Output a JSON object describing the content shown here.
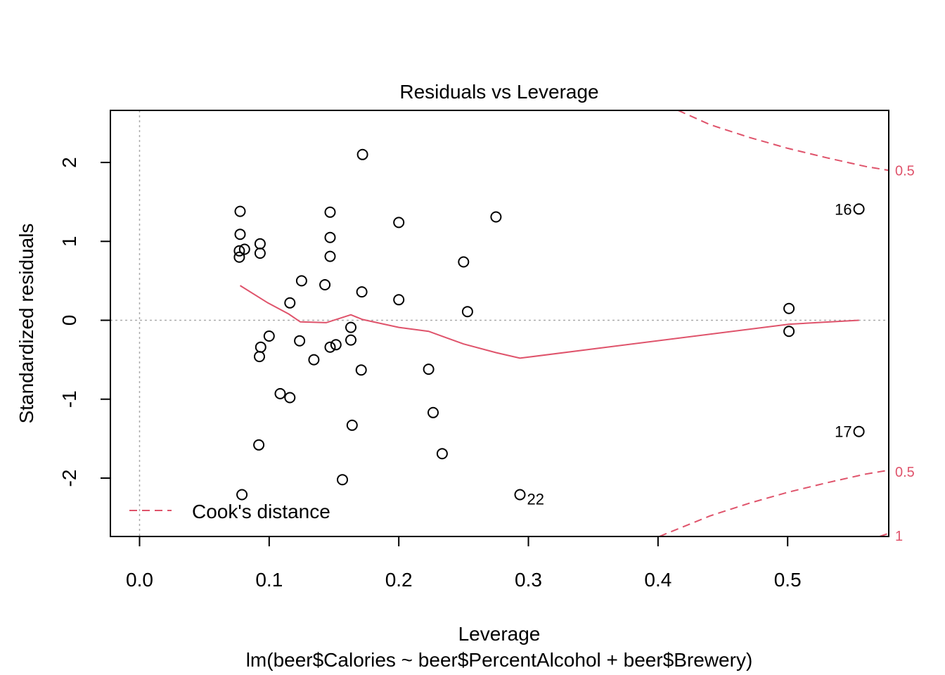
{
  "chart_data": {
    "type": "scatter",
    "title": "Residuals vs Leverage",
    "xlabel": "Leverage",
    "subtitle": "lm(beer$Calories ~ beer$PercentAlcohol + beer$Brewery)",
    "ylabel": "Standardized residuals",
    "xlim": [
      -0.0225,
      0.578
    ],
    "ylim": [
      -2.74,
      2.66
    ],
    "x_ticks": [
      0.0,
      0.1,
      0.2,
      0.3,
      0.4,
      0.5
    ],
    "x_tick_labels": [
      "0.0",
      "0.1",
      "0.2",
      "0.3",
      "0.4",
      "0.5"
    ],
    "y_ticks": [
      -2,
      -1,
      0,
      1,
      2
    ],
    "y_tick_labels": [
      "-2",
      "-1",
      "0",
      "1",
      "2"
    ],
    "grid": false,
    "reference_lines": {
      "x": 0,
      "y": 0,
      "color": "#aaaaaa",
      "style": "dotted"
    },
    "points": [
      {
        "x": 0.0776,
        "y": 1.38
      },
      {
        "x": 0.0776,
        "y": 1.09
      },
      {
        "x": 0.077,
        "y": 0.88
      },
      {
        "x": 0.081,
        "y": 0.9
      },
      {
        "x": 0.077,
        "y": 0.8
      },
      {
        "x": 0.093,
        "y": 0.97
      },
      {
        "x": 0.093,
        "y": 0.85
      },
      {
        "x": 0.1,
        "y": -0.2
      },
      {
        "x": 0.0935,
        "y": -0.34
      },
      {
        "x": 0.0925,
        "y": -0.46
      },
      {
        "x": 0.1085,
        "y": -0.93
      },
      {
        "x": 0.116,
        "y": -0.98
      },
      {
        "x": 0.092,
        "y": -1.58
      },
      {
        "x": 0.079,
        "y": -2.21
      },
      {
        "x": 0.116,
        "y": 0.22
      },
      {
        "x": 0.125,
        "y": 0.5
      },
      {
        "x": 0.1235,
        "y": -0.26
      },
      {
        "x": 0.1345,
        "y": -0.5
      },
      {
        "x": 0.143,
        "y": 0.45
      },
      {
        "x": 0.147,
        "y": 1.37
      },
      {
        "x": 0.147,
        "y": 1.05
      },
      {
        "x": 0.147,
        "y": 0.81
      },
      {
        "x": 0.147,
        "y": -0.34
      },
      {
        "x": 0.1515,
        "y": -0.31
      },
      {
        "x": 0.1565,
        "y": -2.02
      },
      {
        "x": 0.163,
        "y": -0.09
      },
      {
        "x": 0.163,
        "y": -0.25
      },
      {
        "x": 0.164,
        "y": -1.33
      },
      {
        "x": 0.171,
        "y": -0.63
      },
      {
        "x": 0.1715,
        "y": 0.36
      },
      {
        "x": 0.172,
        "y": 2.1
      },
      {
        "x": 0.2,
        "y": 1.24
      },
      {
        "x": 0.2,
        "y": 0.26
      },
      {
        "x": 0.223,
        "y": -0.62
      },
      {
        "x": 0.2265,
        "y": -1.17
      },
      {
        "x": 0.2335,
        "y": -1.69
      },
      {
        "x": 0.25,
        "y": 0.74
      },
      {
        "x": 0.253,
        "y": 0.11
      },
      {
        "x": 0.275,
        "y": 1.31
      },
      {
        "x": 0.2935,
        "y": -2.21
      },
      {
        "x": 0.501,
        "y": 0.15
      },
      {
        "x": 0.501,
        "y": -0.14
      },
      {
        "x": 0.555,
        "y": 1.41
      },
      {
        "x": 0.555,
        "y": -1.41
      }
    ],
    "point_labels": [
      {
        "text": "16",
        "x": 0.555,
        "y": 1.41,
        "side": "left"
      },
      {
        "text": "17",
        "x": 0.555,
        "y": -1.41,
        "side": "left"
      },
      {
        "text": "22",
        "x": 0.2935,
        "y": -2.21,
        "side": "right"
      }
    ],
    "smooth_line": {
      "color": "#DF536B",
      "x": [
        0.0776,
        0.099,
        0.115,
        0.124,
        0.144,
        0.163,
        0.172,
        0.2,
        0.223,
        0.25,
        0.275,
        0.2935,
        0.501,
        0.555
      ],
      "y": [
        0.44,
        0.22,
        0.08,
        -0.02,
        -0.03,
        0.07,
        0.01,
        -0.09,
        -0.14,
        -0.3,
        -0.41,
        -0.48,
        -0.05,
        0.0
      ]
    },
    "cooks_contours": [
      {
        "label": "0.5",
        "color": "#DF536B",
        "style": "dashed",
        "upper": {
          "x": [
            0.4155,
            0.44,
            0.47,
            0.5,
            0.53,
            0.56,
            0.578
          ],
          "y": [
            2.66,
            2.48,
            2.32,
            2.18,
            2.06,
            1.95,
            1.9
          ]
        },
        "lower": {
          "x": [
            0.401,
            0.44,
            0.47,
            0.5,
            0.53,
            0.56,
            0.578
          ],
          "y": [
            -2.74,
            -2.48,
            -2.32,
            -2.18,
            -2.06,
            -1.95,
            -1.9
          ]
        }
      },
      {
        "label": "1",
        "color": "#DF536B",
        "style": "dashed",
        "lower": {
          "x": [
            0.571,
            0.578
          ],
          "y": [
            -2.74,
            -2.7
          ]
        }
      }
    ],
    "contour_labels": [
      {
        "text": "0.5",
        "y": 1.9
      },
      {
        "text": "0.5",
        "y": -1.92
      },
      {
        "text": "1",
        "y": -2.73
      }
    ],
    "legend": {
      "label": "Cook's distance",
      "color": "#DF536B",
      "style": "dashed",
      "position": "bottom-left"
    }
  }
}
